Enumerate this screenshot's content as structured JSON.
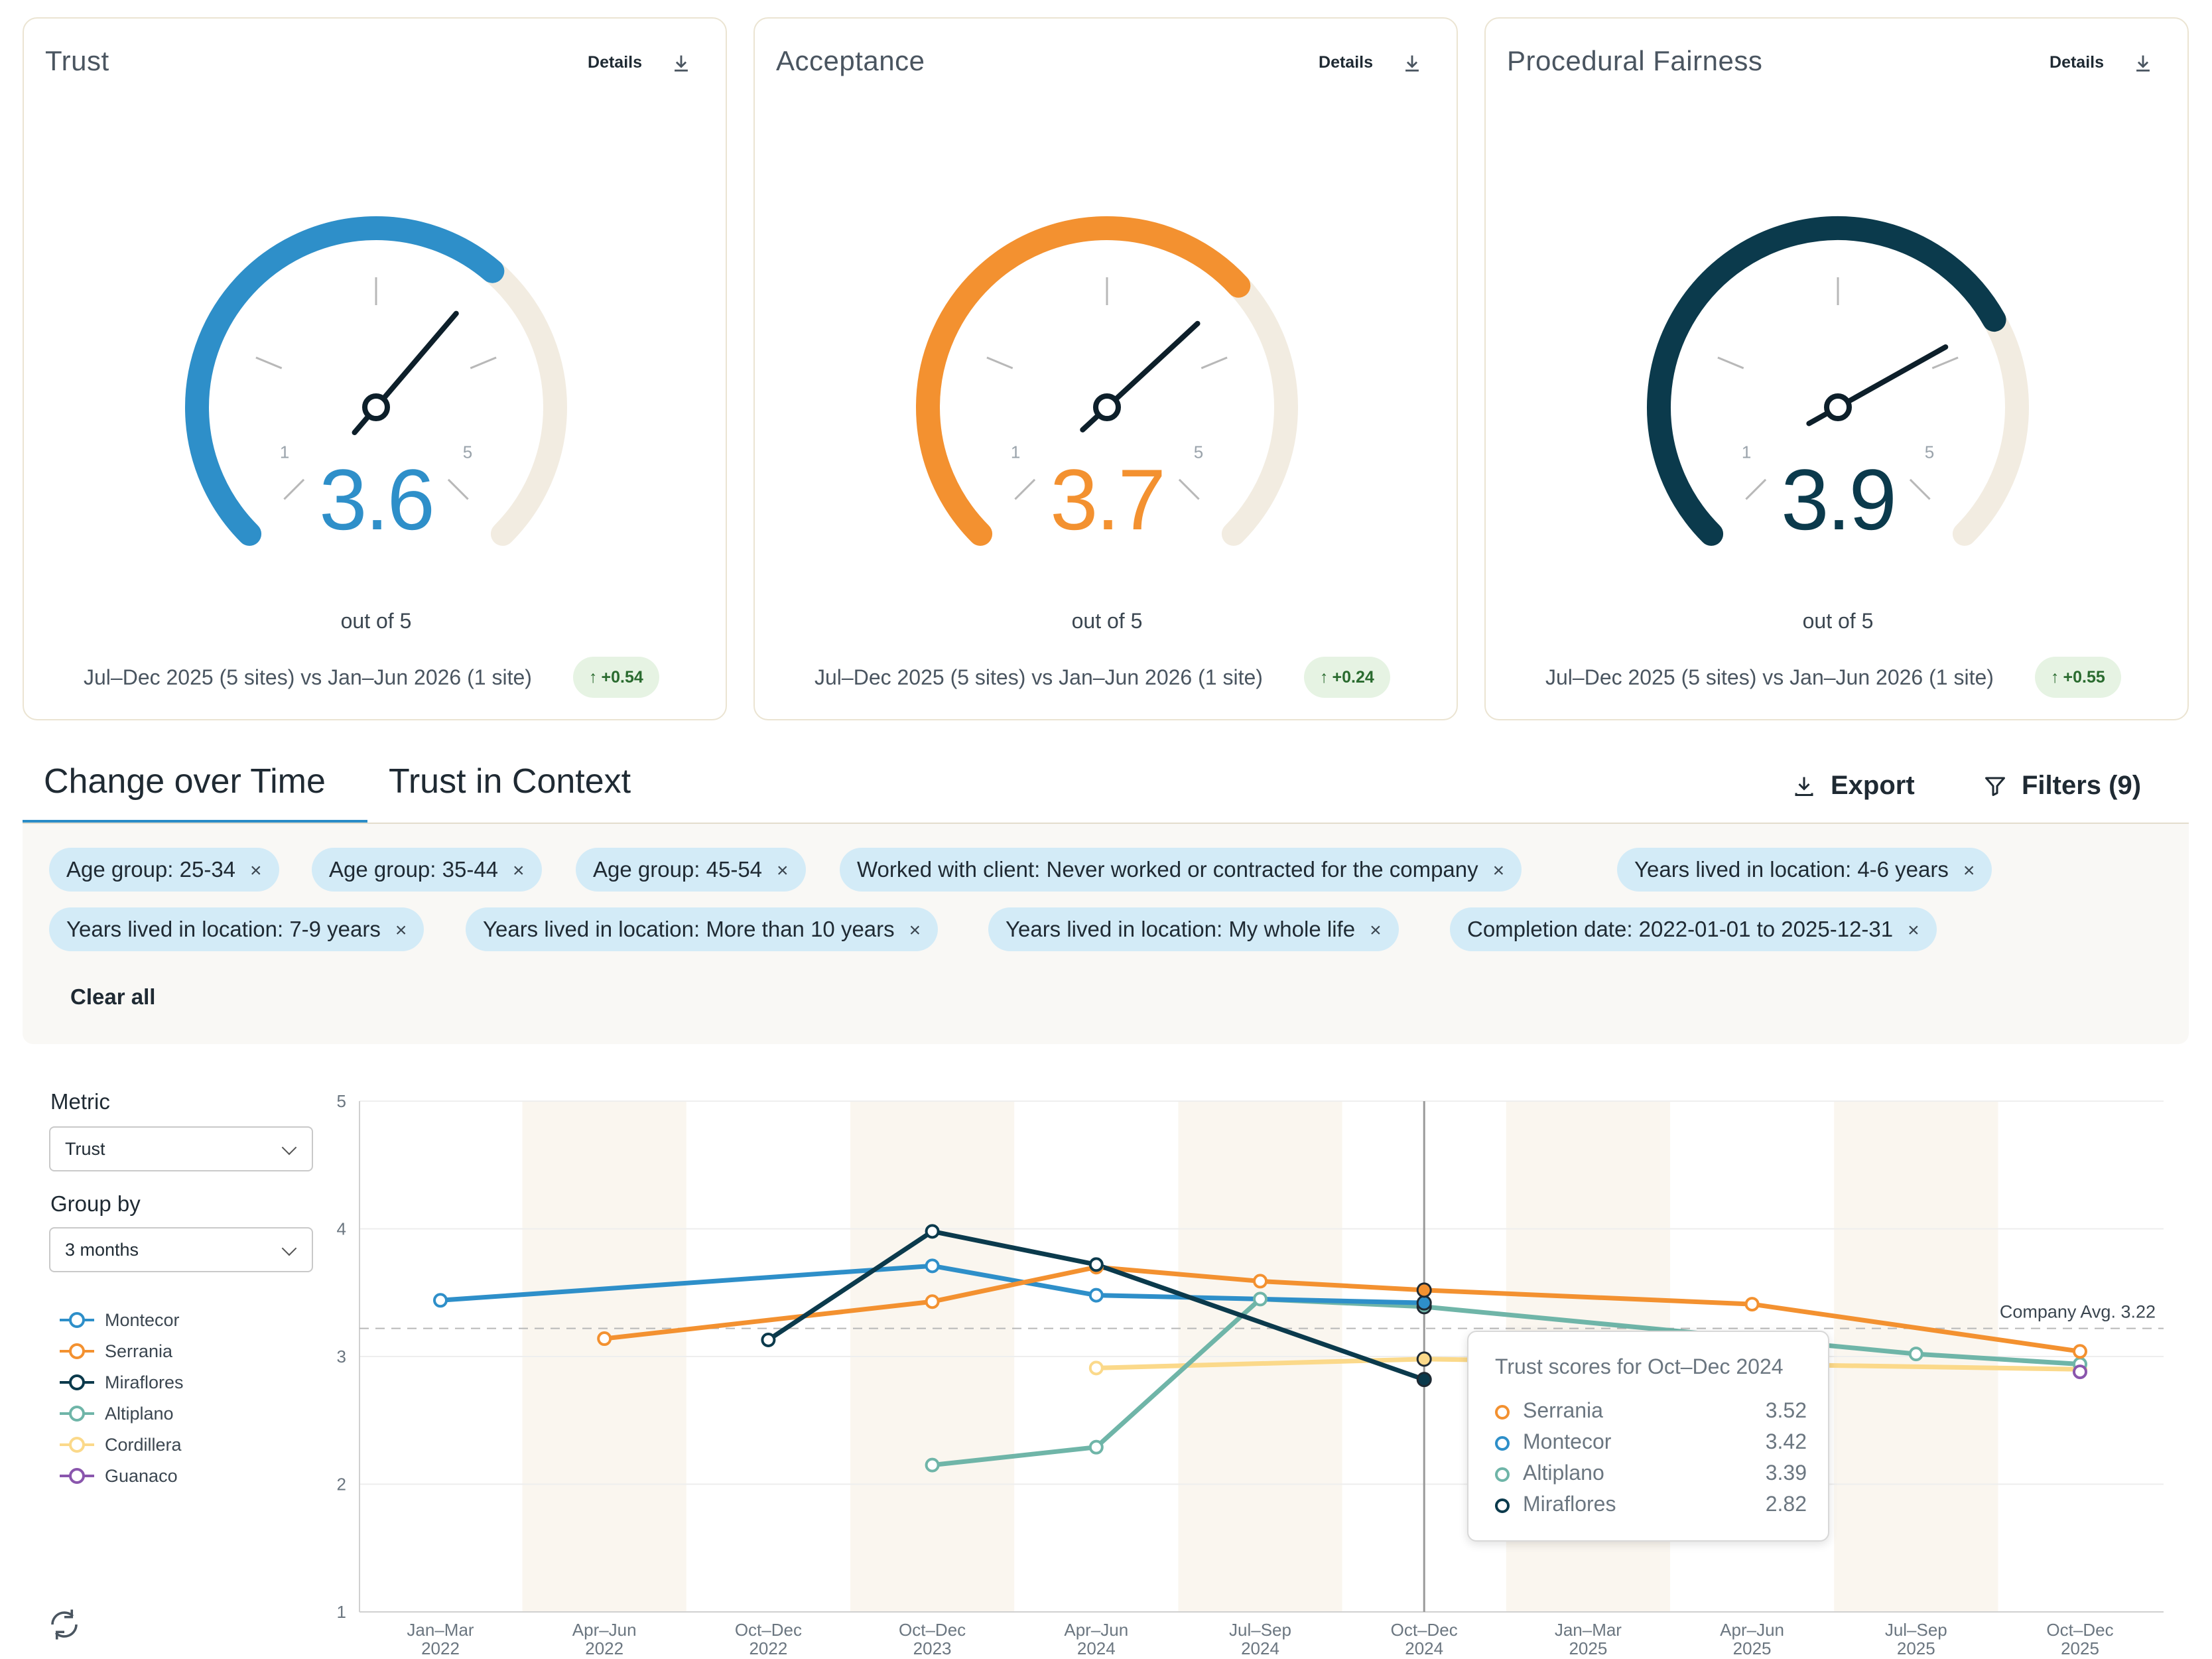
{
  "cards": [
    {
      "title": "Trust",
      "details_label": "Details",
      "download_icon": "download-icon",
      "score": "3.6",
      "score_value": 3.6,
      "out_of": "out of 5",
      "compare": "Jul–Dec 2025 (5 sites) vs Jan–Jun 2026 (1 site)",
      "delta": "+0.54",
      "delta_arrow": "↑",
      "color": "#2e8fc9",
      "tick_low": "1",
      "tick_high": "5"
    },
    {
      "title": "Acceptance",
      "details_label": "Details",
      "download_icon": "download-icon",
      "score": "3.7",
      "score_value": 3.7,
      "out_of": "out of 5",
      "compare": "Jul–Dec 2025 (5 sites) vs Jan–Jun 2026 (1 site)",
      "delta": "+0.24",
      "delta_arrow": "↑",
      "color": "#f39130",
      "tick_low": "1",
      "tick_high": "5"
    },
    {
      "title": "Procedural Fairness",
      "details_label": "Details",
      "download_icon": "download-icon",
      "score": "3.9",
      "score_value": 3.9,
      "out_of": "out of 5",
      "compare": "Jul–Dec 2025 (5 sites) vs Jan–Jun 2026 (1 site)",
      "delta": "+0.55",
      "delta_arrow": "↑",
      "color": "#0b3a4c",
      "tick_low": "1",
      "tick_high": "5"
    }
  ],
  "gauge_track_color": "#f2ece1",
  "tabs": [
    {
      "label": "Change over Time",
      "active": true
    },
    {
      "label": "Trust in Context",
      "active": false
    }
  ],
  "actions": {
    "export": "Export",
    "export_icon": "download-icon",
    "filters": "Filters (9)",
    "filters_icon": "funnel-icon"
  },
  "filters": {
    "chips": [
      "Age group: 25-34",
      "Age group: 35-44",
      "Age group: 45-54",
      "Worked with client: Never worked or contracted for the company",
      "Years lived in location: 4-6 years",
      "Years lived in location: 7-9 years",
      "Years lived in location: More than 10 years",
      "Years lived in location: My whole life",
      "Completion date: 2022-01-01 to 2025-12-31"
    ],
    "remove_icon": "×",
    "clear_all": "Clear all"
  },
  "controls": {
    "metric_label": "Metric",
    "metric_value": "Trust",
    "group_label": "Group by",
    "group_value": "3 months"
  },
  "legend": [
    {
      "name": "Montecor",
      "color": "#2e8fc9"
    },
    {
      "name": "Serrania",
      "color": "#f39130"
    },
    {
      "name": "Miraflores",
      "color": "#0b3a4c"
    },
    {
      "name": "Altiplano",
      "color": "#6fb5a8"
    },
    {
      "name": "Cordillera",
      "color": "#fbd98a"
    },
    {
      "name": "Guanaco",
      "color": "#8a56ad"
    }
  ],
  "chart_data": {
    "type": "line",
    "categories": [
      [
        "Jan–Mar",
        "2022"
      ],
      [
        "Apr–Jun",
        "2022"
      ],
      [
        "Oct–Dec",
        "2022"
      ],
      [
        "Oct–Dec",
        "2023"
      ],
      [
        "Apr–Jun",
        "2024"
      ],
      [
        "Jul–Sep",
        "2024"
      ],
      [
        "Oct–Dec",
        "2024"
      ],
      [
        "Jan–Mar",
        "2025"
      ],
      [
        "Apr–Jun",
        "2025"
      ],
      [
        "Jul–Sep",
        "2025"
      ],
      [
        "Oct–Dec",
        "2025"
      ]
    ],
    "ylim": [
      1,
      5
    ],
    "yticks": [
      "1",
      "2",
      "3",
      "4",
      "5"
    ],
    "series": [
      {
        "name": "Montecor",
        "color": "#2e8fc9",
        "points": [
          [
            0,
            3.44
          ],
          [
            3,
            3.71
          ],
          [
            4,
            3.48
          ],
          [
            6,
            3.42
          ]
        ]
      },
      {
        "name": "Serrania",
        "color": "#f39130",
        "points": [
          [
            1,
            3.14
          ],
          [
            3,
            3.43
          ],
          [
            4,
            3.7
          ],
          [
            5,
            3.59
          ],
          [
            6,
            3.52
          ],
          [
            8,
            3.41
          ],
          [
            10,
            3.04
          ]
        ]
      },
      {
        "name": "Miraflores",
        "color": "#0b3a4c",
        "points": [
          [
            2,
            3.13
          ],
          [
            3,
            3.98
          ],
          [
            4,
            3.72
          ],
          [
            6,
            2.82
          ]
        ]
      },
      {
        "name": "Altiplano",
        "color": "#6fb5a8",
        "points": [
          [
            3,
            2.15
          ],
          [
            4,
            2.29
          ],
          [
            5,
            3.45
          ],
          [
            6,
            3.39
          ],
          [
            9,
            3.02
          ],
          [
            10,
            2.94
          ]
        ]
      },
      {
        "name": "Cordillera",
        "color": "#fbd98a",
        "points": [
          [
            4,
            2.91
          ],
          [
            6,
            2.98
          ],
          [
            10,
            2.9
          ]
        ]
      },
      {
        "name": "Guanaco",
        "color": "#8a56ad",
        "points": [
          [
            10,
            2.88
          ]
        ]
      }
    ],
    "reference_line": {
      "label": "Company Avg. 3.22",
      "value": 3.22
    },
    "highlight_index": 6
  },
  "tooltip": {
    "title": "Trust scores for Oct–Dec 2024",
    "rows": [
      {
        "name": "Serrania",
        "value": "3.52",
        "color": "#f39130"
      },
      {
        "name": "Montecor",
        "value": "3.42",
        "color": "#2e8fc9"
      },
      {
        "name": "Altiplano",
        "value": "3.39",
        "color": "#6fb5a8"
      },
      {
        "name": "Miraflores",
        "value": "2.82",
        "color": "#0b3a4c"
      }
    ]
  }
}
